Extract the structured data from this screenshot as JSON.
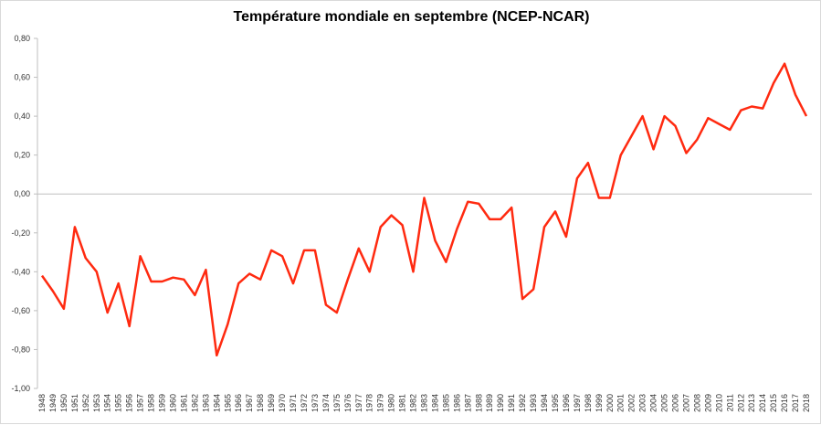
{
  "chart_data": {
    "type": "line",
    "title": "Température mondiale en septembre (NCEP-NCAR)",
    "xlabel": "",
    "ylabel": "",
    "ylim": [
      -1.0,
      0.8
    ],
    "yticks": [
      "-1,00",
      "-0,80",
      "-0,60",
      "-0,40",
      "-0,20",
      "0,00",
      "0,20",
      "0,40",
      "0,60",
      "0,80"
    ],
    "ytick_values": [
      -1.0,
      -0.8,
      -0.6,
      -0.4,
      -0.2,
      0,
      0.2,
      0.4,
      0.6,
      0.8
    ],
    "grid": false,
    "line_color": "#ff2a10",
    "x": [
      1948,
      1949,
      1950,
      1951,
      1952,
      1953,
      1954,
      1955,
      1956,
      1957,
      1958,
      1959,
      1960,
      1961,
      1962,
      1963,
      1964,
      1965,
      1966,
      1967,
      1968,
      1969,
      1970,
      1971,
      1972,
      1973,
      1974,
      1975,
      1976,
      1977,
      1978,
      1979,
      1980,
      1981,
      1982,
      1983,
      1984,
      1985,
      1986,
      1987,
      1988,
      1989,
      1990,
      1991,
      1992,
      1993,
      1994,
      1995,
      1996,
      1997,
      1998,
      1999,
      2000,
      2001,
      2002,
      2003,
      2004,
      2005,
      2006,
      2007,
      2008,
      2009,
      2010,
      2011,
      2012,
      2013,
      2014,
      2015,
      2016,
      2017,
      2018
    ],
    "series": [
      {
        "name": "Température",
        "values": [
          -0.42,
          -0.5,
          -0.59,
          -0.17,
          -0.33,
          -0.4,
          -0.61,
          -0.46,
          -0.68,
          -0.32,
          -0.45,
          -0.45,
          -0.43,
          -0.44,
          -0.52,
          -0.39,
          -0.83,
          -0.67,
          -0.46,
          -0.41,
          -0.44,
          -0.29,
          -0.32,
          -0.46,
          -0.29,
          -0.29,
          -0.57,
          -0.61,
          -0.44,
          -0.28,
          -0.4,
          -0.17,
          -0.11,
          -0.16,
          -0.4,
          -0.02,
          -0.24,
          -0.35,
          -0.18,
          -0.04,
          -0.05,
          -0.13,
          -0.13,
          -0.07,
          -0.54,
          -0.49,
          -0.17,
          -0.09,
          -0.22,
          0.08,
          0.16,
          -0.02,
          -0.02,
          0.2,
          0.3,
          0.4,
          0.23,
          0.4,
          0.35,
          0.21,
          0.28,
          0.39,
          0.36,
          0.33,
          0.43,
          0.45,
          0.44,
          0.57,
          0.67,
          0.51,
          0.4
        ]
      }
    ]
  }
}
